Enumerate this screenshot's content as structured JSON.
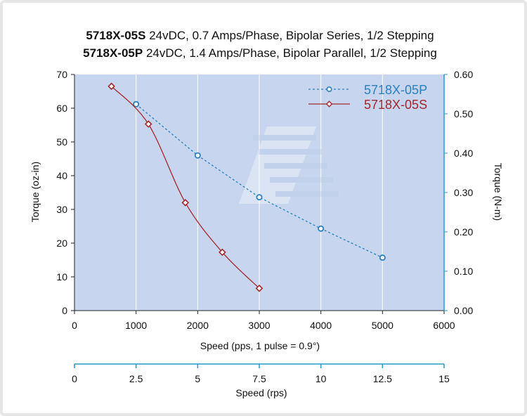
{
  "title": {
    "line1_bold": "5718X-05S",
    "line1_rest": " 24vDC, 0.7 Amps/Phase, Bipolar Series, 1/2 Stepping",
    "line2_bold": "5718X-05P",
    "line2_rest": " 24vDC, 1.4 Amps/Phase, Bipolar Parallel, 1/2 Stepping"
  },
  "colors": {
    "plot_bg": "#c7d6ee",
    "grid": "#ffffff",
    "axis": "#2a97c9",
    "series_p": "#2a7fc1",
    "series_s": "#a3282b"
  },
  "chart_data": {
    "type": "line",
    "title": "5718X-05S 24vDC, 0.7 Amps/Phase, Bipolar Series, 1/2 Stepping / 5718X-05P 24vDC, 1.4 Amps/Phase, Bipolar Parallel, 1/2 Stepping",
    "xlabel": "Speed (pps, 1 pulse = 0.9°)",
    "ylabel": "Torque (oz-in)",
    "y2label": "Torque (N-m)",
    "x2label": "Speed (rps)",
    "xlim": [
      0,
      6000
    ],
    "ylim": [
      0,
      70
    ],
    "y2lim": [
      0,
      0.6
    ],
    "x2lim": [
      0,
      15
    ],
    "xticks": [
      "0",
      "1000",
      "2000",
      "3000",
      "4000",
      "5000",
      "6000"
    ],
    "yticks": [
      "0",
      "10",
      "20",
      "30",
      "40",
      "50",
      "60",
      "70"
    ],
    "y2ticks": [
      "0.00",
      "0.10",
      "0.20",
      "0.30",
      "0.40",
      "0.50",
      "0.60"
    ],
    "x2ticks": [
      "0",
      "2.5",
      "5",
      "7.5",
      "10",
      "12.5",
      "15"
    ],
    "grid": true,
    "legend_position": "top-right",
    "series": [
      {
        "name": "5718X-05P",
        "marker": "circle",
        "line": "dashed",
        "points": [
          [
            1000,
            61.2
          ],
          [
            2000,
            46
          ],
          [
            3000,
            33.6
          ],
          [
            4000,
            24.3
          ],
          [
            5000,
            15.7
          ]
        ]
      },
      {
        "name": "5718X-05S",
        "marker": "diamond",
        "line": "solid",
        "points": [
          [
            600,
            66.5
          ],
          [
            1200,
            55.3
          ],
          [
            1800,
            32
          ],
          [
            2400,
            17.3
          ],
          [
            3000,
            6.6
          ]
        ]
      }
    ]
  }
}
